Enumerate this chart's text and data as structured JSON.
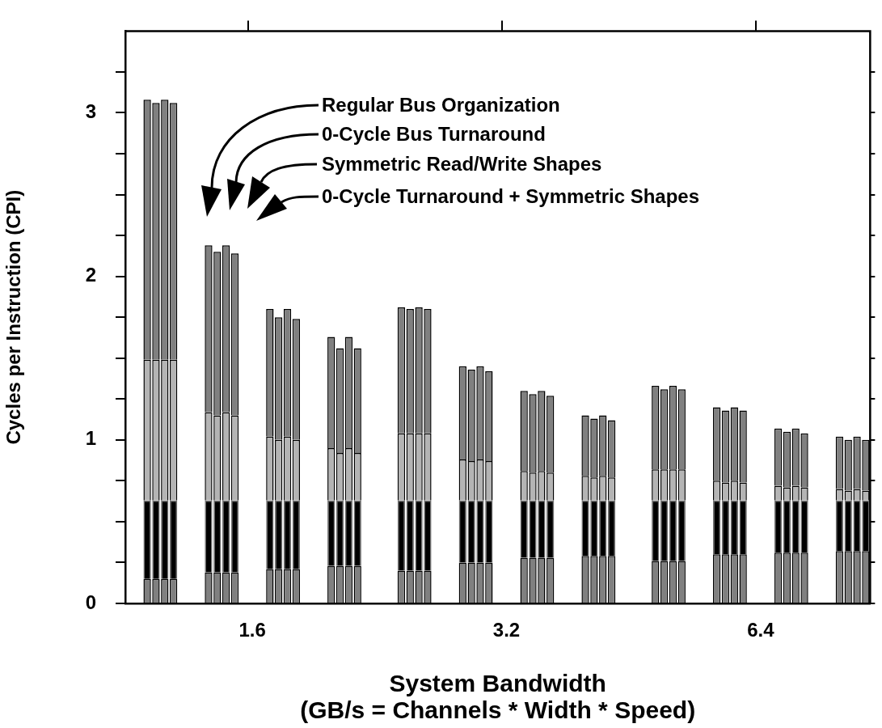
{
  "chart_data": {
    "type": "bar",
    "stacked": true,
    "xlabel": "System Bandwidth\n(GB/s = Channels * Width * Speed)",
    "ylabel": "Cycles per Instruction (CPI)",
    "categories": [
      null,
      null,
      null,
      null,
      null,
      null,
      null,
      null,
      null,
      null,
      null,
      null,
      null,
      null,
      "1.6",
      null,
      null,
      null,
      null,
      null,
      null,
      null,
      null,
      null,
      null,
      null,
      null,
      null,
      null,
      null,
      null,
      null,
      null,
      null,
      null,
      null,
      null,
      null,
      null,
      null,
      null,
      null,
      null,
      "3.2",
      null,
      null,
      null,
      null,
      null,
      null,
      null,
      null,
      null,
      null,
      null,
      null,
      null,
      null,
      null,
      null,
      null,
      null,
      null,
      null,
      null,
      null,
      null,
      null,
      null,
      null,
      null,
      null,
      "6.4",
      null,
      null,
      null,
      null,
      null,
      null,
      null,
      null,
      null,
      null,
      null,
      null
    ],
    "series": [
      {
        "color": "#808080",
        "values": [
          null,
          null,
          0.15,
          0.15,
          0.15,
          0.15,
          null,
          null,
          null,
          0.19,
          0.19,
          0.19,
          0.19,
          null,
          null,
          null,
          0.21,
          0.21,
          0.21,
          0.21,
          null,
          null,
          null,
          0.23,
          0.23,
          0.23,
          0.23,
          null,
          null,
          null,
          null,
          0.2,
          0.2,
          0.2,
          0.2,
          null,
          null,
          null,
          0.25,
          0.25,
          0.25,
          0.25,
          null,
          null,
          null,
          0.28,
          0.28,
          0.28,
          0.28,
          null,
          null,
          null,
          0.29,
          0.29,
          0.29,
          0.29,
          null,
          null,
          null,
          null,
          0.26,
          0.26,
          0.26,
          0.26,
          null,
          null,
          null,
          0.3,
          0.3,
          0.3,
          0.3,
          null,
          null,
          null,
          0.31,
          0.31,
          0.31,
          0.31,
          null,
          null,
          null,
          0.32,
          0.32,
          0.32,
          0.32
        ]
      },
      {
        "color": "#000000",
        "values": [
          null,
          null,
          0.48,
          0.48,
          0.48,
          0.48,
          null,
          null,
          null,
          0.44,
          0.44,
          0.44,
          0.44,
          null,
          null,
          null,
          0.42,
          0.42,
          0.42,
          0.42,
          null,
          null,
          null,
          0.4,
          0.4,
          0.4,
          0.4,
          null,
          null,
          null,
          null,
          0.43,
          0.43,
          0.43,
          0.43,
          null,
          null,
          null,
          0.38,
          0.38,
          0.38,
          0.38,
          null,
          null,
          null,
          0.35,
          0.35,
          0.35,
          0.35,
          null,
          null,
          null,
          0.34,
          0.34,
          0.34,
          0.34,
          null,
          null,
          null,
          null,
          0.37,
          0.37,
          0.37,
          0.37,
          null,
          null,
          null,
          0.33,
          0.33,
          0.33,
          0.33,
          null,
          null,
          null,
          0.32,
          0.32,
          0.32,
          0.32,
          null,
          null,
          null,
          0.31,
          0.31,
          0.31,
          0.31
        ]
      },
      {
        "color": "#b4b4b4",
        "values": [
          null,
          null,
          0.86,
          0.86,
          0.86,
          0.86,
          null,
          null,
          null,
          0.54,
          0.52,
          0.54,
          0.52,
          null,
          null,
          null,
          0.39,
          0.37,
          0.39,
          0.37,
          null,
          null,
          null,
          0.32,
          0.29,
          0.32,
          0.29,
          null,
          null,
          null,
          null,
          0.41,
          0.41,
          0.41,
          0.41,
          null,
          null,
          null,
          0.25,
          0.24,
          0.25,
          0.24,
          null,
          null,
          null,
          0.18,
          0.17,
          0.18,
          0.17,
          null,
          null,
          null,
          0.15,
          0.14,
          0.15,
          0.14,
          null,
          null,
          null,
          null,
          0.19,
          0.19,
          0.19,
          0.19,
          null,
          null,
          null,
          0.12,
          0.11,
          0.12,
          0.11,
          null,
          null,
          null,
          0.09,
          0.08,
          0.09,
          0.08,
          null,
          null,
          null,
          0.07,
          0.06,
          0.07,
          0.06
        ]
      },
      {
        "color": "#808080",
        "values": [
          null,
          null,
          1.59,
          1.57,
          1.59,
          1.57,
          null,
          null,
          null,
          1.02,
          1.0,
          1.02,
          0.99,
          null,
          null,
          null,
          0.78,
          0.75,
          0.78,
          0.74,
          null,
          null,
          null,
          0.68,
          0.64,
          0.68,
          0.64,
          null,
          null,
          null,
          null,
          0.77,
          0.76,
          0.77,
          0.76,
          null,
          null,
          null,
          0.57,
          0.56,
          0.57,
          0.55,
          null,
          null,
          null,
          0.49,
          0.48,
          0.49,
          0.47,
          null,
          null,
          null,
          0.37,
          0.36,
          0.37,
          0.35,
          null,
          null,
          null,
          null,
          0.51,
          0.49,
          0.51,
          0.49,
          null,
          null,
          null,
          0.45,
          0.44,
          0.45,
          0.44,
          null,
          null,
          null,
          0.35,
          0.34,
          0.35,
          0.33,
          null,
          null,
          null,
          0.32,
          0.31,
          0.32,
          0.31
        ]
      }
    ],
    "ylim": [
      0,
      3.5
    ],
    "yticks": [
      0,
      {
        "value": 0.25,
        "label": null
      },
      {
        "value": 0.5,
        "label": null
      },
      {
        "value": 0.75,
        "label": null
      },
      1,
      {
        "value": 1.25,
        "label": null
      },
      {
        "value": 1.5,
        "label": null
      },
      {
        "value": 1.75,
        "label": null
      },
      2,
      {
        "value": 2.25,
        "label": null
      },
      {
        "value": 2.5,
        "label": null
      },
      {
        "value": 2.75,
        "label": null
      },
      3,
      {
        "value": 3.25,
        "label": null
      }
    ],
    "grid": false,
    "legend": false,
    "annotations": [
      "Regular Bus Organization",
      "0-Cycle Bus Turnaround",
      "Symmetric Read/Write Shapes",
      "0-Cycle Turnaround + Symmetric Shapes"
    ]
  }
}
